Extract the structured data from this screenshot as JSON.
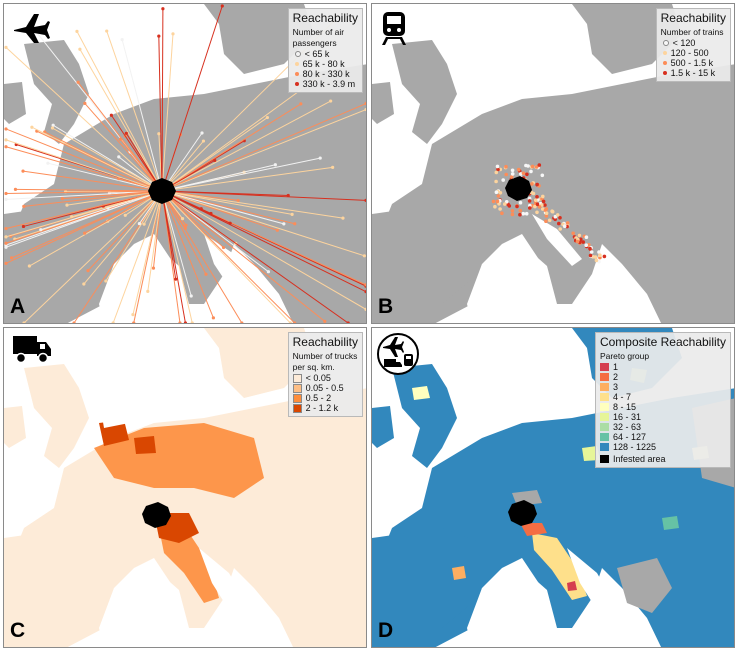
{
  "panels": {
    "a": {
      "letter": "A",
      "icon": "airplane-icon",
      "legend": {
        "title": "Reachability",
        "subtitle_lines": [
          "Number of air",
          "passengers"
        ],
        "items": [
          {
            "label": "< 65 k",
            "color": "#f2f2f2"
          },
          {
            "label": "65 k - 80 k",
            "color": "#fdd49e"
          },
          {
            "label": "80 k - 330 k",
            "color": "#fc8d59"
          },
          {
            "label": "330 k - 3.9 m",
            "color": "#d7301f"
          }
        ]
      }
    },
    "b": {
      "letter": "B",
      "icon": "train-icon",
      "legend": {
        "title": "Reachability",
        "subtitle_lines": [
          "Number of trains"
        ],
        "items": [
          {
            "label": "< 120",
            "color": "#f7f7f7"
          },
          {
            "label": "120 - 500",
            "color": "#fdd49e"
          },
          {
            "label": "500 - 1.5 k",
            "color": "#fc8d59"
          },
          {
            "label": "1.5 k - 15 k",
            "color": "#d7301f"
          }
        ]
      }
    },
    "c": {
      "letter": "C",
      "icon": "truck-icon",
      "legend": {
        "title": "Reachability",
        "subtitle_lines": [
          "Number of trucks",
          "per sq. km."
        ],
        "items": [
          {
            "label": "< 0.05",
            "color": "#fdebd8"
          },
          {
            "label": "0.05 - 0.5",
            "color": "#fdbe85"
          },
          {
            "label": "0.5 - 2",
            "color": "#fd8d3c"
          },
          {
            "label": "2 - 1.2 k",
            "color": "#d94701"
          }
        ]
      }
    },
    "d": {
      "letter": "D",
      "icon": "composite-transport-icon",
      "legend": {
        "title": "Composite Reachability",
        "subtitle_lines": [
          "Pareto group"
        ],
        "items": [
          {
            "label": "1",
            "color": "#d53e4f"
          },
          {
            "label": "2",
            "color": "#f46d43"
          },
          {
            "label": "3",
            "color": "#fdae61"
          },
          {
            "label": "4 - 7",
            "color": "#fee08b"
          },
          {
            "label": "8 - 15",
            "color": "#ffffbf"
          },
          {
            "label": "16 - 31",
            "color": "#e6f598"
          },
          {
            "label": "32 - 63",
            "color": "#abdda4"
          },
          {
            "label": "64 - 127",
            "color": "#66c2a5"
          },
          {
            "label": "128 - 1225",
            "color": "#3288bd"
          }
        ],
        "infested_label": "Infested area",
        "infested_color": "#000000"
      }
    }
  },
  "colors": {
    "land": "#a8a8a8",
    "sea": "#ffffff",
    "infested": "#000000"
  }
}
